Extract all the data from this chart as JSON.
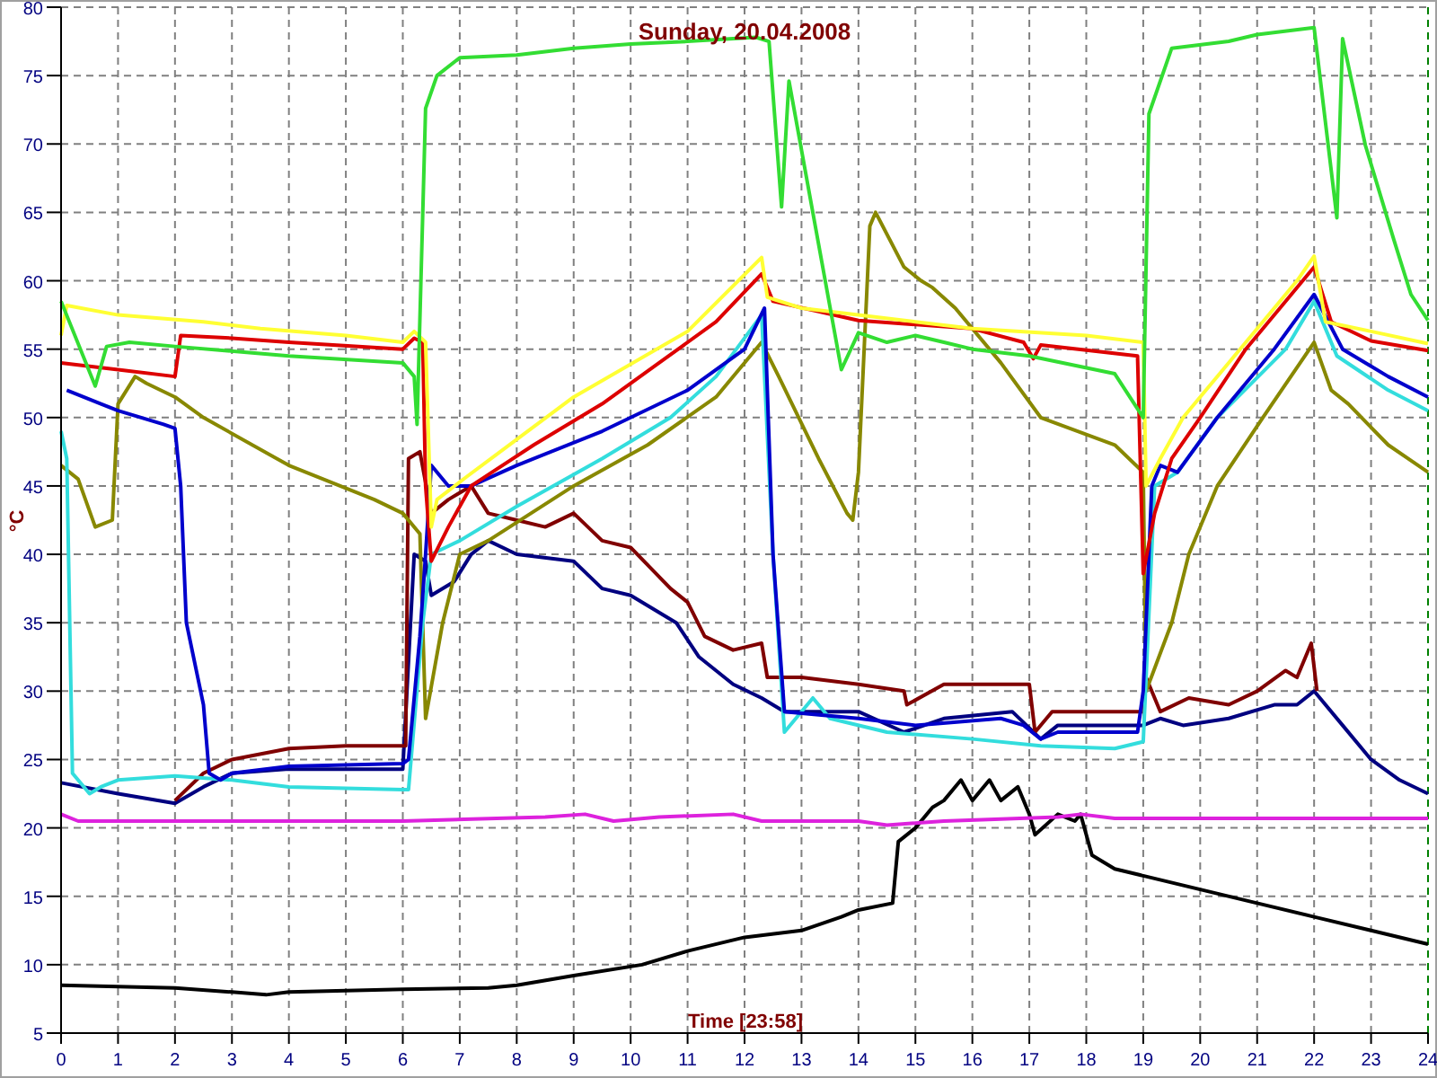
{
  "chart_data": {
    "type": "line",
    "title": "Sunday, 20.04.2008",
    "xlabel": "Time [23:58]",
    "ylabel": "°C",
    "xlim": [
      0,
      24
    ],
    "xticks": [
      0,
      1,
      2,
      3,
      4,
      5,
      6,
      7,
      8,
      9,
      10,
      11,
      12,
      13,
      14,
      15,
      16,
      17,
      18,
      19,
      20,
      21,
      22,
      23,
      24
    ],
    "ylim": [
      5,
      80
    ],
    "yticks": [
      5,
      10,
      15,
      20,
      25,
      30,
      35,
      40,
      45,
      50,
      55,
      60,
      65,
      70,
      75,
      80
    ],
    "grid": true,
    "ref_lines": [
      {
        "axis": "x",
        "value": 24,
        "color": "#008000",
        "line_style": "dashed"
      }
    ],
    "series": [
      {
        "color": "#000000",
        "x": [
          0,
          2,
          3,
          3.6,
          4,
          6,
          7.5,
          8,
          9,
          10.2,
          11,
          12,
          13,
          13.7,
          14,
          14.6,
          14.7,
          15,
          15.3,
          15.5,
          15.8,
          16,
          16.3,
          16.5,
          16.8,
          17,
          17.1,
          17.5,
          17.8,
          17.9,
          18.1,
          18.5,
          19,
          20,
          21,
          22,
          23,
          24
        ],
        "values": [
          8.5,
          8.3,
          8,
          7.8,
          8,
          8.2,
          8.3,
          8.5,
          9.2,
          10,
          11,
          12,
          12.5,
          13.5,
          14,
          14.5,
          19,
          20,
          21.5,
          22,
          23.5,
          22,
          23.5,
          22,
          23,
          21,
          19.5,
          21,
          20.5,
          21,
          18,
          17,
          16.5,
          15.5,
          14.5,
          13.5,
          12.5,
          11.5
        ]
      },
      {
        "color": "#dd22dd",
        "x": [
          0,
          0.3,
          6,
          8.5,
          9.2,
          9.7,
          10.5,
          11.8,
          12.3,
          14,
          14.5,
          15.5,
          17.5,
          17.9,
          18.5,
          24
        ],
        "values": [
          21,
          20.5,
          20.5,
          20.8,
          21,
          20.5,
          20.8,
          21,
          20.5,
          20.5,
          20.2,
          20.5,
          20.8,
          21,
          20.7,
          20.7
        ]
      },
      {
        "color": "#000080",
        "x": [
          0,
          1,
          2,
          2.5,
          3,
          4,
          6,
          6.2,
          6.4,
          6.5,
          6.9,
          7.2,
          7.5,
          8,
          9,
          9.5,
          10,
          10.8,
          11.2,
          11.8,
          12.3,
          12.7,
          14,
          14.8,
          15.5,
          16.7,
          17.2,
          17.5,
          19,
          19.3,
          19.7,
          20.5,
          21.3,
          21.7,
          22,
          22.5,
          23,
          23.5,
          24
        ],
        "values": [
          23.3,
          22.5,
          21.8,
          23,
          24,
          24.3,
          24.3,
          40,
          39.5,
          37,
          38,
          40,
          41,
          40,
          39.5,
          37.5,
          37,
          35,
          32.5,
          30.5,
          29.5,
          28.5,
          28.5,
          27,
          28,
          28.5,
          26.5,
          27.5,
          27.5,
          28,
          27.5,
          28,
          29,
          29,
          30,
          27.5,
          25,
          23.5,
          22.5
        ]
      },
      {
        "color": "#800000",
        "x": [
          2,
          2.5,
          3,
          4,
          5,
          6,
          6.05,
          6.1,
          6.3,
          6.5,
          6.8,
          7.2,
          7.5,
          8,
          8.5,
          9,
          9.5,
          10,
          10.7,
          11,
          11.3,
          11.8,
          12.3,
          12.4,
          13,
          14,
          14.8,
          14.85,
          15.5,
          17,
          17.1,
          17.4,
          19,
          19.05,
          19.3,
          19.8,
          20.5,
          21,
          21.5,
          21.7,
          21.95,
          22.05
        ],
        "values": [
          22,
          24,
          25,
          25.8,
          26,
          26,
          26,
          47,
          47.5,
          43,
          44,
          45,
          43,
          42.5,
          42,
          43,
          41,
          40.5,
          37.5,
          36.5,
          34,
          33,
          33.5,
          31,
          31,
          30.5,
          30,
          29,
          30.5,
          30.5,
          27,
          28.5,
          28.5,
          31,
          28.5,
          29.5,
          29,
          30,
          31.5,
          31,
          33.5,
          30
        ]
      },
      {
        "color": "#888800",
        "x": [
          0,
          0.3,
          0.6,
          0.9,
          1,
          1.3,
          1.5,
          2,
          2.5,
          4,
          5.5,
          6,
          6.3,
          6.4,
          6.7,
          7,
          7.5,
          9,
          10.3,
          11.5,
          12.3,
          12.6,
          13.3,
          13.8,
          13.9,
          14,
          14.2,
          14.3,
          14.8,
          15.1,
          15.3,
          15.7,
          16.5,
          17.2,
          18.5,
          19,
          19.05,
          19.5,
          19.8,
          20.3,
          21.1,
          22,
          22.3,
          22.6,
          23.3,
          24
        ],
        "values": [
          46.5,
          45.5,
          42,
          42.5,
          51,
          53,
          52.5,
          51.5,
          50,
          46.5,
          44,
          43,
          41.5,
          28,
          35,
          40,
          41,
          45,
          48,
          51.5,
          55.5,
          53,
          47,
          43,
          42.5,
          46,
          64,
          65,
          61,
          60,
          59.5,
          58,
          54,
          50,
          48,
          46,
          30,
          35,
          40,
          45,
          50,
          55.5,
          52,
          51,
          48,
          46
        ]
      },
      {
        "color": "#33dddd",
        "x": [
          0,
          0.1,
          0.2,
          0.5,
          0.7,
          1,
          2,
          3,
          4,
          6,
          6.1,
          6.35,
          6.5,
          7,
          8,
          9.5,
          10.7,
          11.5,
          12.3,
          12.5,
          12.7,
          13.2,
          13.5,
          14.5,
          16,
          17.2,
          18.5,
          19,
          19.2,
          19.6,
          20.3,
          21.5,
          22,
          22.4,
          23.3,
          24
        ],
        "values": [
          49,
          47,
          24,
          22.5,
          23,
          23.5,
          23.8,
          23.5,
          23,
          22.8,
          22.8,
          35,
          40,
          41,
          43.5,
          47,
          50,
          53,
          57.5,
          40,
          27,
          29.5,
          28,
          27,
          26.5,
          26,
          25.8,
          26.3,
          45,
          46,
          50,
          55,
          58.5,
          54.5,
          52,
          50.5
        ]
      },
      {
        "color": "#0000cc",
        "x": [
          0.1,
          0.7,
          1,
          1.8,
          2,
          2.1,
          2.2,
          2.4,
          2.5,
          2.6,
          2.8,
          3,
          4,
          6,
          6.1,
          6.3,
          6.4,
          6.5,
          6.8,
          7.2,
          8,
          9.5,
          11,
          12,
          12.35,
          12.5,
          12.7,
          14,
          15,
          16.5,
          16.9,
          17.2,
          17.5,
          18.9,
          19,
          19.15,
          19.3,
          19.6,
          20.3,
          21.3,
          22,
          22.5,
          23.3,
          24
        ],
        "values": [
          52,
          51,
          50.5,
          49.5,
          49.2,
          45,
          35,
          31,
          29,
          24,
          23.5,
          24,
          24.5,
          24.7,
          25,
          34,
          40,
          46.5,
          45,
          45,
          46.5,
          49,
          52,
          55,
          58,
          40,
          28.5,
          28,
          27.5,
          28,
          27.5,
          26.5,
          27,
          27,
          30,
          45,
          46.5,
          46,
          50,
          55,
          59,
          55,
          53,
          51.5
        ]
      },
      {
        "color": "#dd0000",
        "x": [
          0,
          1,
          2,
          2.1,
          3,
          4,
          6,
          6.2,
          6.35,
          6.4,
          6.5,
          6.8,
          7.2,
          8.3,
          9.5,
          10.5,
          11.5,
          12.3,
          12.5,
          14,
          16,
          16.9,
          17.07,
          17.2,
          18.9,
          19,
          19.2,
          19.5,
          20,
          20.8,
          21.6,
          22,
          22.3,
          23,
          24
        ],
        "values": [
          54,
          53.5,
          53,
          56,
          55.8,
          55.5,
          55,
          55.8,
          55.5,
          45,
          39.5,
          42,
          45,
          48,
          51,
          54,
          57,
          60.5,
          58.5,
          57.1,
          56.5,
          55.5,
          54.3,
          55.3,
          54.5,
          38.6,
          43,
          47,
          50,
          55,
          59,
          61,
          57,
          55.6,
          54.9
        ]
      },
      {
        "color": "#ffff33",
        "x": [
          0,
          0.1,
          1,
          2.5,
          3.5,
          5,
          6,
          6.2,
          6.4,
          6.5,
          6.6,
          7.13,
          9,
          11,
          12.3,
          12.4,
          13,
          15,
          16,
          18,
          19,
          19.05,
          19.3,
          19.7,
          20.7,
          21.7,
          22,
          22.2,
          23,
          24
        ],
        "values": [
          56,
          58.2,
          57.5,
          57,
          56.5,
          56,
          55.5,
          56.3,
          55.5,
          42,
          44,
          45.7,
          51.5,
          56.3,
          61.7,
          58.8,
          58,
          57,
          56.5,
          56,
          55.5,
          45,
          47,
          50,
          55,
          60,
          61.8,
          57,
          56.3,
          55.4
        ]
      },
      {
        "color": "#33dd33",
        "x": [
          0,
          0.6,
          0.8,
          1.2,
          2,
          4,
          6,
          6.2,
          6.25,
          6.4,
          6.6,
          7,
          8,
          9,
          10,
          11,
          12.2,
          12.43,
          12.65,
          12.78,
          13.7,
          14,
          14.5,
          15,
          15.5,
          16,
          17,
          18.5,
          19,
          19.1,
          19.5,
          20.5,
          21,
          22,
          22.4,
          22.5,
          22.9,
          23.4,
          23.7,
          24
        ],
        "values": [
          58.5,
          52.3,
          55.2,
          55.5,
          55.2,
          54.5,
          54,
          53,
          49.5,
          72.6,
          75,
          76.3,
          76.5,
          77,
          77.3,
          77.5,
          77.8,
          77.5,
          65.4,
          74.6,
          53.5,
          56.2,
          55.5,
          56,
          55.5,
          55,
          54.5,
          53.2,
          50,
          72.2,
          77,
          77.5,
          78,
          78.5,
          64.6,
          77.7,
          69.9,
          63,
          59,
          57.1
        ]
      }
    ]
  }
}
